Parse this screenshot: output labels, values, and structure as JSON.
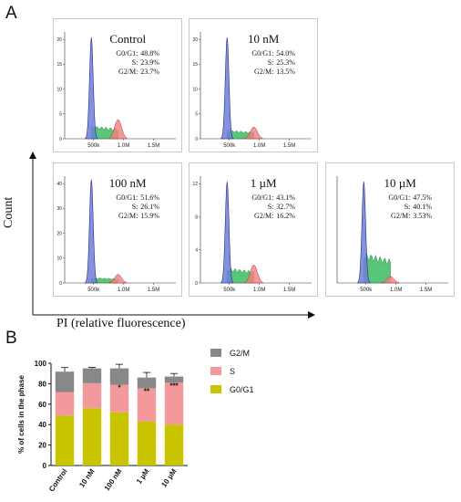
{
  "panel_labels": {
    "a": "A",
    "b": "B"
  },
  "axes": {
    "count_label": "Count",
    "pi_label": "PI (relative fluorescence)"
  },
  "histograms": [
    {
      "title": "Control",
      "yticks": [
        "0",
        "5",
        "10",
        "15",
        "20"
      ],
      "ymax": 22,
      "stats": [
        {
          "label": "G0/G1:",
          "value": "48.8%"
        },
        {
          "label": "S:",
          "value": "23.9%"
        },
        {
          "label": "G2/M:",
          "value": "23.7%"
        }
      ],
      "peak1": 0.95,
      "peak2": 0.18,
      "s_level": 0.12
    },
    {
      "title": "10 nM",
      "yticks": [
        "0",
        "5",
        "10",
        "15",
        "20"
      ],
      "ymax": 22,
      "stats": [
        {
          "label": "G0/G1:",
          "value": "54.0%"
        },
        {
          "label": "S:",
          "value": "25.3%"
        },
        {
          "label": "G2/M:",
          "value": "13.5%"
        }
      ],
      "peak1": 0.95,
      "peak2": 0.11,
      "s_level": 0.08
    },
    {
      "title": "100 nM",
      "yticks": [
        "0",
        "10",
        "20",
        "30",
        "40"
      ],
      "ymax": 42,
      "stats": [
        {
          "label": "G0/G1:",
          "value": "51.6%"
        },
        {
          "label": "S:",
          "value": "26.1%"
        },
        {
          "label": "G2/M:",
          "value": "15.9%"
        }
      ],
      "peak1": 0.97,
      "peak2": 0.08,
      "s_level": 0.05
    },
    {
      "title": "1 µM",
      "yticks": [
        "0",
        "4",
        "8",
        "12"
      ],
      "ymax": 12.5,
      "stats": [
        {
          "label": "G0/G1:",
          "value": "43.1%"
        },
        {
          "label": "S:",
          "value": "32.7%"
        },
        {
          "label": "G2/M:",
          "value": "16.2%"
        }
      ],
      "peak1": 0.95,
      "peak2": 0.17,
      "s_level": 0.14
    },
    {
      "title": "10 µM",
      "yticks": [],
      "ymax": 1,
      "stats": [
        {
          "label": "G0/G1:",
          "value": "47.5%"
        },
        {
          "label": "S:",
          "value": "40.1%"
        },
        {
          "label": "G2/M:",
          "value": "3.53%"
        }
      ],
      "peak1": 0.95,
      "peak2": 0.06,
      "s_level": 0.28
    }
  ],
  "hist_xticks": [
    "500k",
    "1.0M",
    "1.5M"
  ],
  "chart_data": {
    "type": "bar",
    "stacked": true,
    "categories": [
      "Control",
      "10 nM",
      "100 nM",
      "1 µM",
      "10 µM"
    ],
    "series": [
      {
        "name": "G0/G1",
        "values": [
          48.8,
          56.0,
          52.0,
          43.0,
          40.0
        ],
        "color": "#c8c400",
        "errors": [
          3,
          1,
          4,
          1,
          8
        ]
      },
      {
        "name": "S",
        "values": [
          23.0,
          24.5,
          27.0,
          32.5,
          41.0
        ],
        "color": "#f4999b",
        "errors": [
          2,
          1,
          2,
          4,
          3
        ]
      },
      {
        "name": "G2/M",
        "values": [
          20.0,
          14.5,
          16.0,
          10.5,
          6.0
        ],
        "color": "#888888",
        "errors": [
          4,
          1,
          4,
          5,
          3
        ]
      }
    ],
    "annotations": [
      "",
      "",
      "*",
      "**",
      "***"
    ],
    "ylabel": "% of cells in the phase",
    "yticks": [
      "0",
      "20",
      "40",
      "60",
      "80",
      "100"
    ],
    "ylim": [
      0,
      100
    ],
    "legend": [
      "G2/M",
      "S",
      "G0/G1"
    ],
    "legend_position": "right"
  }
}
